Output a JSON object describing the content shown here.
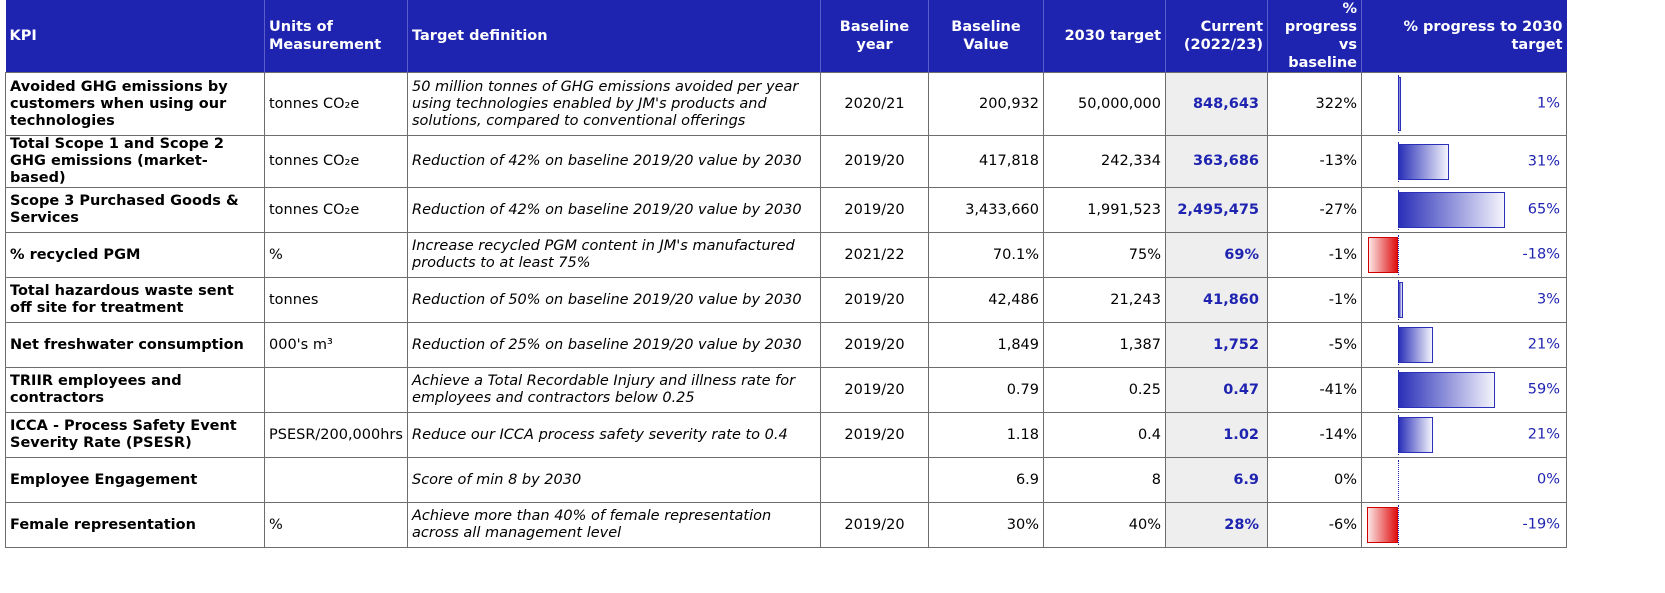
{
  "headers": {
    "kpi": "KPI",
    "units": "Units of Measurement",
    "target_definition": "Target definition",
    "baseline_year": "Baseline year",
    "baseline_value": "Baseline Value",
    "target_2030": "2030 target",
    "current": "Current (2022/23)",
    "progress_baseline": "% progress vs baseline",
    "progress_target": "% progress to 2030 target"
  },
  "rows": [
    {
      "kpi": "Avoided GHG emissions by customers when using our technologies",
      "units": "tonnes CO₂e",
      "definition": "50 million tonnes of GHG emissions avoided per year using technologies enabled by JM's products and solutions, compared to conventional offerings",
      "baseline_year": "2020/21",
      "baseline_value": "200,932",
      "target": "50,000,000",
      "current": "848,643",
      "progress_baseline": "322%",
      "progress_target": "1%",
      "progress_target_value": 1
    },
    {
      "kpi": "Total Scope 1 and Scope 2 GHG emissions (market-based)",
      "units": "tonnes CO₂e",
      "definition": "Reduction of 42% on baseline 2019/20 value by 2030",
      "baseline_year": "2019/20",
      "baseline_value": "417,818",
      "target": "242,334",
      "current": "363,686",
      "progress_baseline": "-13%",
      "progress_target": "31%",
      "progress_target_value": 31
    },
    {
      "kpi": "Scope 3 Purchased Goods & Services",
      "units": "tonnes CO₂e",
      "definition": "Reduction of 42% on baseline 2019/20 value by 2030",
      "baseline_year": "2019/20",
      "baseline_value": "3,433,660",
      "target": "1,991,523",
      "current": "2,495,475",
      "progress_baseline": "-27%",
      "progress_target": "65%",
      "progress_target_value": 65
    },
    {
      "kpi": "% recycled PGM",
      "units": "%",
      "definition": "Increase recycled PGM content in JM's manufactured products to at least 75%",
      "baseline_year": "2021/22",
      "baseline_value": "70.1%",
      "target": "75%",
      "current": "69%",
      "progress_baseline": "-1%",
      "progress_target": "-18%",
      "progress_target_value": -18
    },
    {
      "kpi": "Total hazardous waste sent off site for treatment",
      "units": "tonnes",
      "definition": "Reduction of 50% on baseline 2019/20 value by 2030",
      "baseline_year": "2019/20",
      "baseline_value": "42,486",
      "target": "21,243",
      "current": "41,860",
      "progress_baseline": "-1%",
      "progress_target": "3%",
      "progress_target_value": 3
    },
    {
      "kpi": "Net freshwater consumption",
      "units": "000's m³",
      "definition": "Reduction of 25% on baseline 2019/20 value by 2030",
      "baseline_year": "2019/20",
      "baseline_value": "1,849",
      "target": "1,387",
      "current": "1,752",
      "progress_baseline": "-5%",
      "progress_target": "21%",
      "progress_target_value": 21
    },
    {
      "kpi": "TRIIR employees and contractors",
      "units": "",
      "definition": "Achieve a Total Recordable Injury and illness rate for employees and contractors below 0.25",
      "baseline_year": "2019/20",
      "baseline_value": "0.79",
      "target": "0.25",
      "current": "0.47",
      "progress_baseline": "-41%",
      "progress_target": "59%",
      "progress_target_value": 59
    },
    {
      "kpi": "ICCA - Process Safety Event Severity Rate (PSESR)",
      "units": "PSESR/200,000hrs",
      "definition": "Reduce our ICCA process safety severity rate to 0.4",
      "baseline_year": "2019/20",
      "baseline_value": "1.18",
      "target": "0.4",
      "current": "1.02",
      "progress_baseline": "-14%",
      "progress_target": "21%",
      "progress_target_value": 21
    },
    {
      "kpi": "Employee Engagement",
      "units": "",
      "definition": "Score of min 8 by 2030",
      "baseline_year": "",
      "baseline_value": "6.9",
      "target": "8",
      "current": "6.9",
      "progress_baseline": "0%",
      "progress_target": "0%",
      "progress_target_value": 0
    },
    {
      "kpi": "Female representation",
      "units": "%",
      "definition": "Achieve more than 40% of female representation across all management level",
      "baseline_year": "2019/20",
      "baseline_value": "30%",
      "target": "40%",
      "current": "28%",
      "progress_baseline": "-6%",
      "progress_target": "-19%",
      "progress_target_value": -19
    }
  ],
  "colors": {
    "header_bg": "#1f24b0",
    "current_text": "#1f24b0",
    "negative_bar": "#e01010",
    "positive_bar": "#2a30b8"
  }
}
